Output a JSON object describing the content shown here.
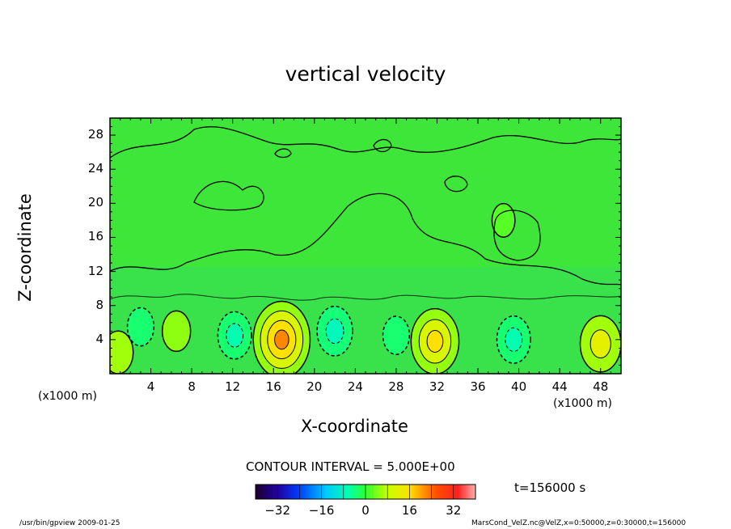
{
  "chart_data": {
    "type": "heatmap",
    "title": "vertical velocity",
    "xlabel": "X-coordinate",
    "ylabel": "Z-coordinate",
    "x_unit": "(x1000 m)",
    "y_unit": "(x1000 m)",
    "xlim": [
      0,
      50
    ],
    "ylim": [
      0,
      30
    ],
    "x_ticks": [
      "4",
      "8",
      "12",
      "16",
      "20",
      "24",
      "28",
      "32",
      "36",
      "40",
      "44",
      "48"
    ],
    "y_ticks": [
      "4",
      "8",
      "12",
      "16",
      "20",
      "24",
      "28"
    ],
    "contour_interval_text": "CONTOUR INTERVAL = 5.000E+00",
    "colorbar": {
      "range": [
        -40,
        40
      ],
      "tick_labels": [
        "-32",
        "-16",
        "0",
        "16",
        "32"
      ],
      "colors": [
        "#1a0030",
        "#2200a0",
        "#0040ff",
        "#00c8ff",
        "#00ffb0",
        "#30ff30",
        "#c8ff00",
        "#ffe000",
        "#ff5000",
        "#ff2020",
        "#ffb0b0"
      ]
    },
    "time_label": "t=156000 s",
    "features": [
      {
        "x": 16.8,
        "z": 4.0,
        "w": 21,
        "type": "updraft"
      },
      {
        "x": 31.8,
        "z": 3.8,
        "w": 16,
        "type": "updraft"
      },
      {
        "x": 48.0,
        "z": 3.5,
        "w": 12,
        "type": "updraft"
      },
      {
        "x": 0.8,
        "z": 2.5,
        "w": 6,
        "type": "updraft"
      },
      {
        "x": 6.5,
        "z": 5.0,
        "w": 5,
        "type": "updraft"
      },
      {
        "x": 12.2,
        "z": 4.5,
        "w": -8,
        "type": "downdraft"
      },
      {
        "x": 22.0,
        "z": 5.0,
        "w": -9,
        "type": "downdraft"
      },
      {
        "x": 28.0,
        "z": 4.5,
        "w": -4,
        "type": "downdraft"
      },
      {
        "x": 39.5,
        "z": 4.0,
        "w": -8,
        "type": "downdraft"
      },
      {
        "x": 3.0,
        "z": 5.5,
        "w": -4,
        "type": "downdraft"
      },
      {
        "x": 38.5,
        "z": 18.0,
        "w": 2,
        "type": "weak"
      }
    ]
  },
  "footer": {
    "left": "/usr/bin/gpview   2009-01-25",
    "right": "MarsCond_VelZ.nc@VelZ,x=0:50000,z=0:30000,t=156000"
  }
}
